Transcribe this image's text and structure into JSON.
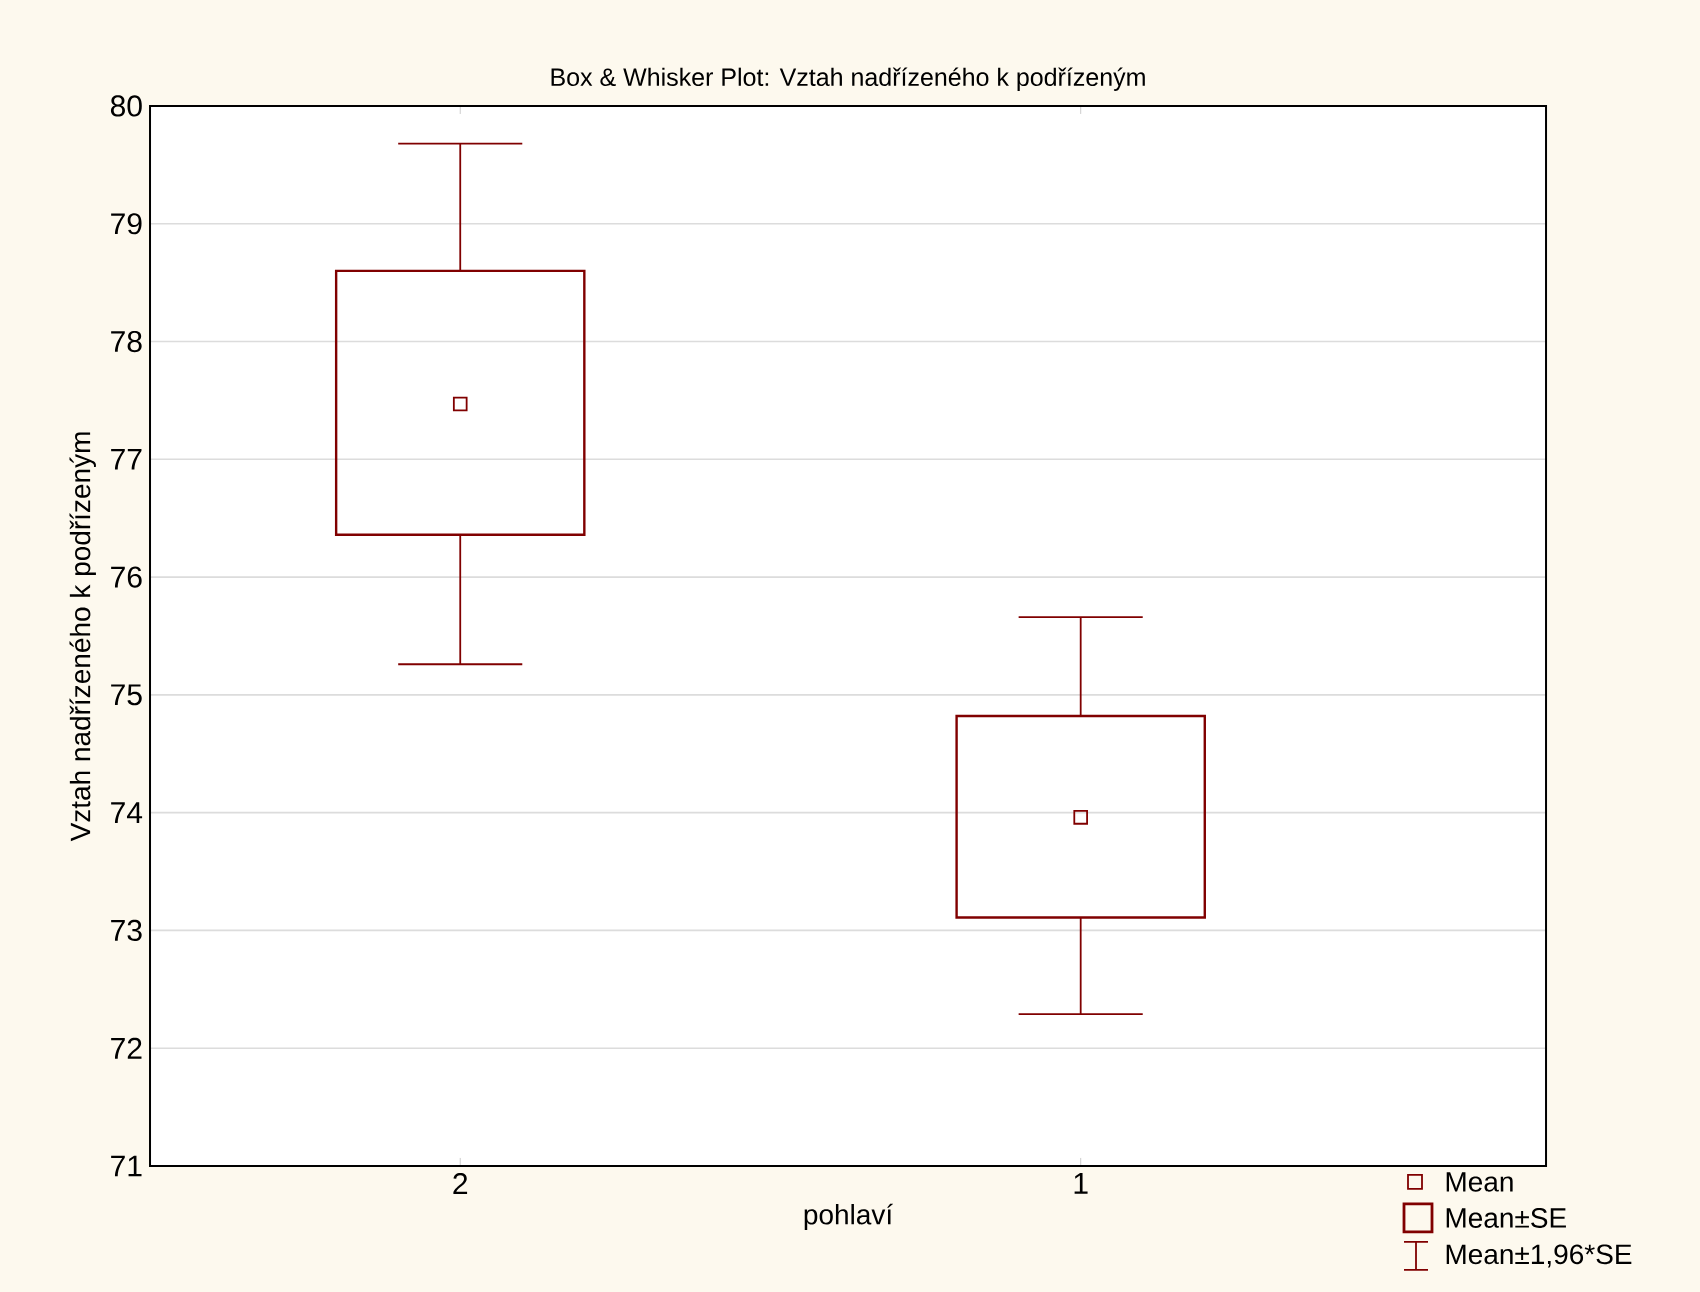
{
  "chart_data": {
    "type": "box",
    "title": "Box & Whisker Plot: Vztah nadřízeného k podřízeným",
    "xlabel": "pohlaví",
    "ylabel": "Vztah nadřízeného k podřízeným",
    "categories": [
      "2",
      "1"
    ],
    "series": [
      {
        "color": "#800000",
        "boxes": [
          {
            "low": 75.26,
            "q1": 76.36,
            "median": 77.47,
            "q3": 78.6,
            "high": 79.68
          },
          {
            "low": 72.29,
            "q1": 73.11,
            "median": 73.96,
            "q3": 74.82,
            "high": 75.66
          }
        ]
      }
    ],
    "ylim": [
      71,
      80
    ],
    "yticks": [
      71,
      72,
      73,
      74,
      75,
      76,
      77,
      78,
      79,
      80
    ],
    "grid": "y",
    "annotations": [
      "Mean",
      "Mean±SE",
      "Mean±1,96*SE"
    ]
  }
}
